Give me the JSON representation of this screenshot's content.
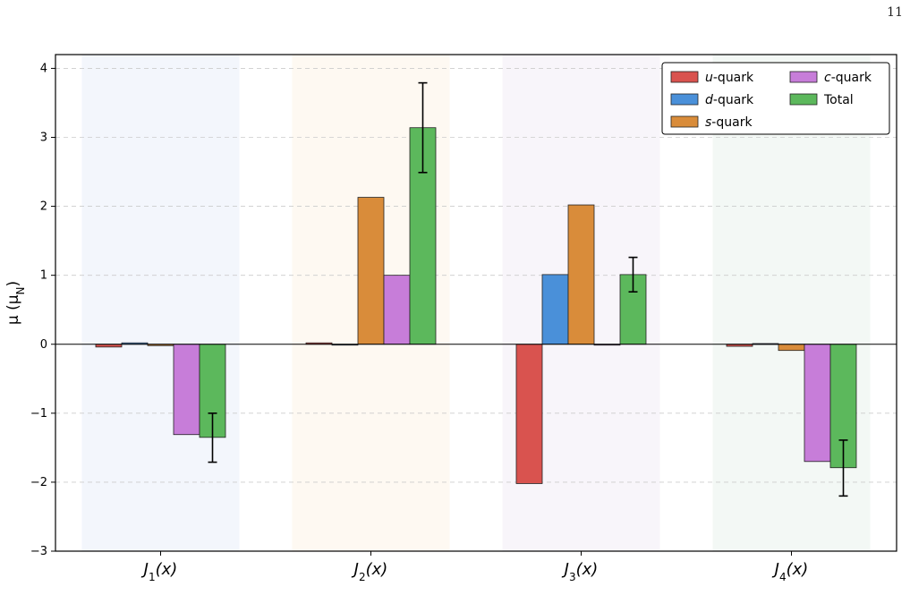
{
  "page_number": "11",
  "chart_data": {
    "type": "bar",
    "ylabel": "μ (μN)",
    "ylim": [
      -3,
      4.2
    ],
    "yticks": [
      -3,
      -2,
      -1,
      0,
      1,
      2,
      3,
      4
    ],
    "ytick_labels": [
      "−3",
      "−2",
      "−1",
      "0",
      "1",
      "2",
      "3",
      "4"
    ],
    "grid": "horizontal dashed",
    "legend_position": "top-right",
    "categories": [
      "J1(x)",
      "J2(x)",
      "J3(x)",
      "J4(x)"
    ],
    "category_shading": [
      "#dce6f5",
      "#fdeed9",
      "#ece2f2",
      "#dcebe2"
    ],
    "series": [
      {
        "name": "u-quark",
        "color": "#d9534f",
        "values": [
          -0.04,
          0.02,
          -2.02,
          -0.03
        ]
      },
      {
        "name": "d-quark",
        "color": "#4a90d9",
        "values": [
          0.02,
          -0.01,
          1.01,
          0.01
        ]
      },
      {
        "name": "s-quark",
        "color": "#d98c3a",
        "values": [
          -0.02,
          2.13,
          2.02,
          -0.09
        ]
      },
      {
        "name": "c-quark",
        "color": "#c77dd9",
        "values": [
          -1.31,
          1.0,
          0.0,
          -1.7
        ]
      },
      {
        "name": "Total",
        "color": "#5cb85c",
        "values": [
          -1.35,
          3.14,
          1.01,
          -1.79
        ]
      }
    ],
    "error_bars": {
      "series": "Total",
      "upper": [
        -1.0,
        3.79,
        1.26,
        -1.39
      ],
      "lower": [
        -1.71,
        2.49,
        0.76,
        -2.2
      ]
    }
  }
}
